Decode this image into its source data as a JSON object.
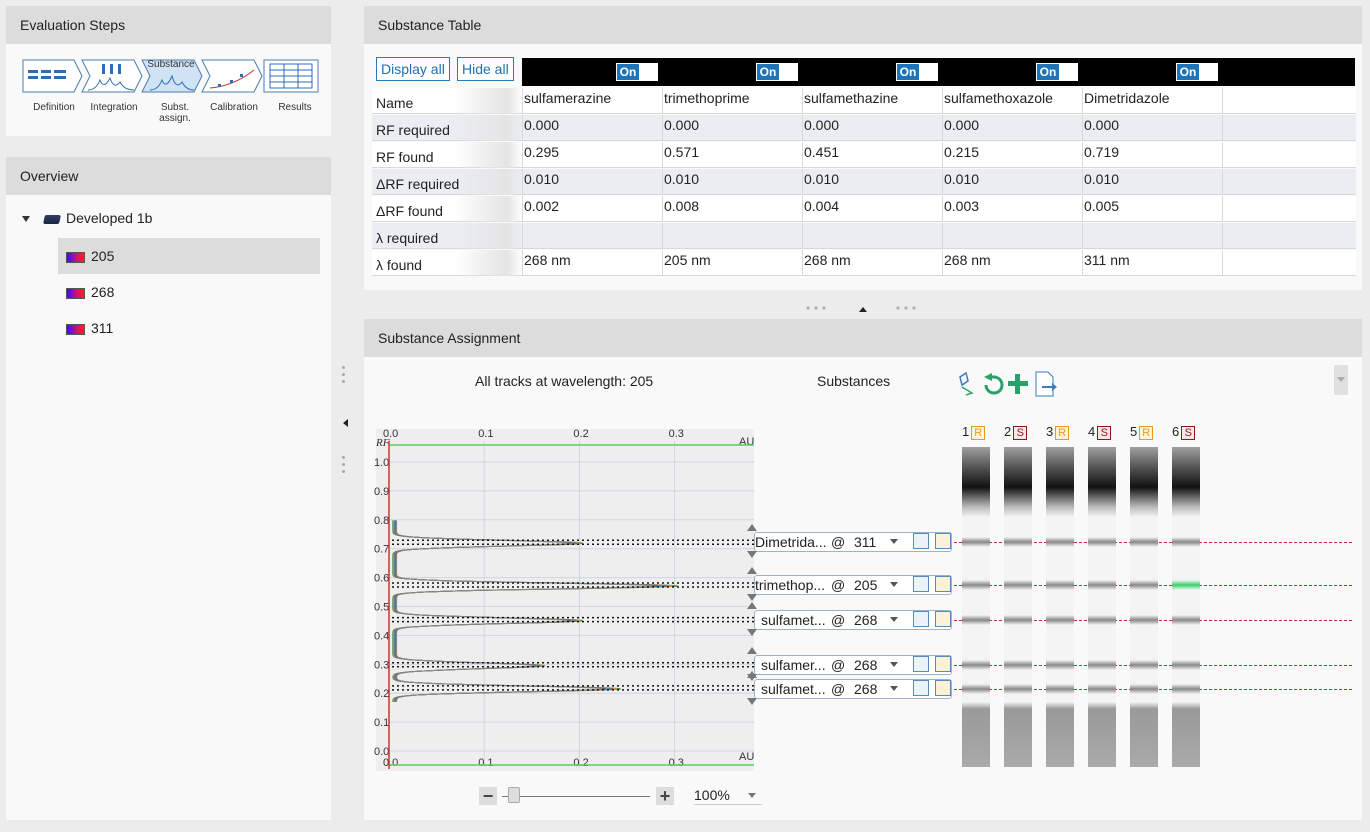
{
  "eval_steps": {
    "title": "Evaluation Steps",
    "steps": [
      {
        "label": "Definition"
      },
      {
        "label": "Integration"
      },
      {
        "label": "Subst.\nassign.",
        "badge": "Substance"
      },
      {
        "label": "Calibration"
      },
      {
        "label": "Results"
      }
    ]
  },
  "overview": {
    "title": "Overview",
    "root": "Developed 1b",
    "items": [
      "205",
      "268",
      "311"
    ]
  },
  "substance_table": {
    "title": "Substance Table",
    "display_all": "Display all",
    "hide_all": "Hide all",
    "toggle_label": "On",
    "row_labels": [
      "Name",
      "RF required",
      "RF found",
      "ΔRF required",
      "ΔRF found",
      "λ required",
      "λ found"
    ],
    "columns": [
      {
        "name": "sulfamerazine",
        "rf_required": "0.000",
        "rf_found": "0.295",
        "drf_required": "0.010",
        "drf_found": "0.002",
        "lambda_required": "",
        "lambda_found": "268 nm"
      },
      {
        "name": "trimethoprime",
        "rf_required": "0.000",
        "rf_found": "0.571",
        "drf_required": "0.010",
        "drf_found": "0.008",
        "lambda_required": "",
        "lambda_found": "205 nm"
      },
      {
        "name": "sulfamethazine",
        "rf_required": "0.000",
        "rf_found": "0.451",
        "drf_required": "0.010",
        "drf_found": "0.004",
        "lambda_required": "",
        "lambda_found": "268 nm"
      },
      {
        "name": "sulfamethoxazole",
        "rf_required": "0.000",
        "rf_found": "0.215",
        "drf_required": "0.010",
        "drf_found": "0.003",
        "lambda_required": "",
        "lambda_found": "268 nm"
      },
      {
        "name": "Dimetridazole",
        "rf_required": "0.000",
        "rf_found": "0.719",
        "drf_required": "0.010",
        "drf_found": "0.005",
        "lambda_required": "",
        "lambda_found": "311 nm"
      }
    ]
  },
  "assignment": {
    "title": "Substance Assignment",
    "tracks_label": "All tracks at wavelength: 205",
    "substances_label": "Substances",
    "zoom": "100%",
    "axis": {
      "rf_label": "RF",
      "unit": "AU",
      "x_ticks": [
        "0.0",
        "0.1",
        "0.2",
        "0.3"
      ],
      "y_ticks": [
        "1.0",
        "0.9",
        "0.8",
        "0.7",
        "0.6",
        "0.5",
        "0.4",
        "0.3",
        "0.2",
        "0.1",
        "0.0"
      ]
    },
    "rows": [
      {
        "name": "Dimetrida...",
        "at": "@",
        "wavelength": "311",
        "rf": 0.719
      },
      {
        "name": "trimethop...",
        "at": "@",
        "wavelength": "205",
        "rf": 0.571
      },
      {
        "name": "sulfamet...",
        "at": "@",
        "wavelength": "268",
        "rf": 0.451
      },
      {
        "name": "sulfamer...",
        "at": "@",
        "wavelength": "268",
        "rf": 0.295
      },
      {
        "name": "sulfamet...",
        "at": "@",
        "wavelength": "268",
        "rf": 0.215
      }
    ],
    "lanes": [
      {
        "num": "1",
        "type": "R"
      },
      {
        "num": "2",
        "type": "S"
      },
      {
        "num": "3",
        "type": "R"
      },
      {
        "num": "4",
        "type": "S"
      },
      {
        "num": "5",
        "type": "R"
      },
      {
        "num": "6",
        "type": "S"
      }
    ]
  },
  "colors": {
    "accent": "#1f74b8",
    "ref_badge": "#e89a20",
    "std_badge": "#8a1a1a",
    "baseline": "#d43030"
  }
}
